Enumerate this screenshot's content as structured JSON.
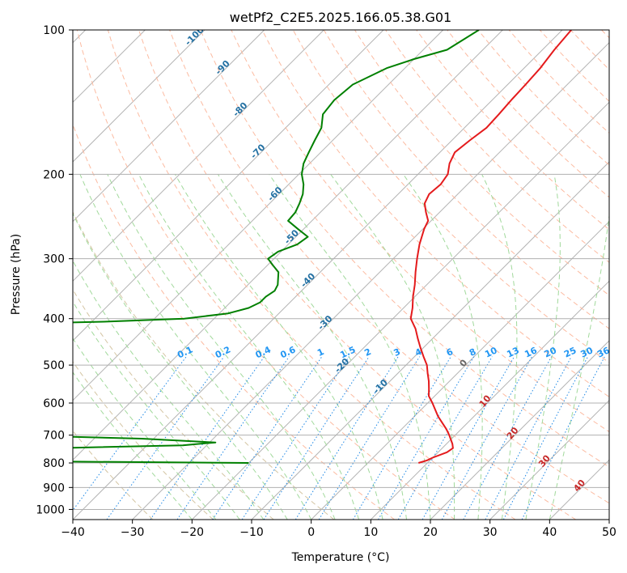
{
  "chart_data": {
    "type": "line",
    "subtype": "skew-t log-p diagram",
    "title": "wetPf2_C2E5.2025.166.05.38.G01",
    "xlabel": "Temperature (°C)",
    "ylabel": "Pressure (hPa)",
    "xlim": [
      -40,
      50
    ],
    "ylim": [
      1050,
      100
    ],
    "y_scale": "log",
    "x_ticks": [
      -40,
      -30,
      -20,
      -10,
      0,
      10,
      20,
      30,
      40,
      50
    ],
    "x_tick_labels": [
      "−40",
      "−30",
      "−20",
      "−10",
      "0",
      "10",
      "20",
      "30",
      "40",
      "50"
    ],
    "y_ticks": [
      100,
      200,
      300,
      400,
      500,
      600,
      700,
      800,
      900,
      1000
    ],
    "y_tick_labels": [
      "100",
      "200",
      "300",
      "400",
      "500",
      "600",
      "700",
      "800",
      "900",
      "1000"
    ],
    "grid": true,
    "colors": {
      "temperature": "#e41a1c",
      "dewpoint": "#008000",
      "isotherm": "#999999",
      "dry_adiabat": "#fc9272",
      "moist_adiabat": "#74c476",
      "mixing_ratio": "#1e88e5",
      "mixing_ratio_label": "#2196f3",
      "isotherm_label": "#2471a3",
      "moist_label": "#c62828"
    },
    "isotherm_labels": [
      "-100",
      "-90",
      "-80",
      "-70",
      "-60",
      "-50",
      "-40",
      "-30",
      "-20",
      "-10"
    ],
    "mixing_ratio_labels": [
      "0.1",
      "0.2",
      "0.4",
      "0.6",
      "1",
      "1.5",
      "2",
      "3",
      "4",
      "6",
      "8",
      "10",
      "13",
      "16",
      "20",
      "25",
      "30",
      "36"
    ],
    "moist_adiabat_labels": [
      "0",
      "10",
      "20",
      "30",
      "40"
    ],
    "series": [
      {
        "key": "temperature",
        "points": [
          [
            100,
            -38.5
          ],
          [
            110,
            -38
          ],
          [
            120,
            -37.3
          ],
          [
            130,
            -37
          ],
          [
            140,
            -36.8
          ],
          [
            150,
            -36.5
          ],
          [
            160,
            -36.3
          ],
          [
            170,
            -37
          ],
          [
            180,
            -37.5
          ],
          [
            190,
            -36.5
          ],
          [
            200,
            -35
          ],
          [
            210,
            -34.5
          ],
          [
            220,
            -34.8
          ],
          [
            230,
            -34
          ],
          [
            240,
            -32.3
          ],
          [
            250,
            -30.5
          ],
          [
            260,
            -29.8
          ],
          [
            280,
            -28
          ],
          [
            300,
            -26
          ],
          [
            320,
            -24
          ],
          [
            340,
            -22
          ],
          [
            360,
            -20.3
          ],
          [
            380,
            -18.5
          ],
          [
            400,
            -17
          ],
          [
            420,
            -14.5
          ],
          [
            440,
            -12.5
          ],
          [
            460,
            -10.5
          ],
          [
            480,
            -8.5
          ],
          [
            500,
            -6.5
          ],
          [
            520,
            -5
          ],
          [
            540,
            -3.5
          ],
          [
            560,
            -2.2
          ],
          [
            580,
            -1
          ],
          [
            600,
            0.8
          ],
          [
            640,
            4
          ],
          [
            680,
            7.5
          ],
          [
            700,
            9
          ],
          [
            730,
            11
          ],
          [
            745,
            11.8
          ],
          [
            760,
            11.5
          ],
          [
            780,
            10
          ],
          [
            790,
            9.5
          ],
          [
            800,
            8.5
          ]
        ]
      },
      {
        "key": "dewpoint",
        "points": [
          [
            100,
            -54
          ],
          [
            110,
            -56
          ],
          [
            115,
            -60
          ],
          [
            120,
            -63
          ],
          [
            130,
            -66
          ],
          [
            140,
            -66.5
          ],
          [
            150,
            -66
          ],
          [
            160,
            -64
          ],
          [
            170,
            -63
          ],
          [
            180,
            -62
          ],
          [
            190,
            -61
          ],
          [
            200,
            -59.5
          ],
          [
            210,
            -57.5
          ],
          [
            220,
            -56
          ],
          [
            230,
            -55
          ],
          [
            240,
            -54.2
          ],
          [
            250,
            -54
          ],
          [
            260,
            -51
          ],
          [
            270,
            -48
          ],
          [
            280,
            -48.5
          ],
          [
            290,
            -50.5
          ],
          [
            300,
            -51
          ],
          [
            310,
            -49
          ],
          [
            320,
            -47
          ],
          [
            340,
            -45
          ],
          [
            350,
            -44.5
          ],
          [
            360,
            -45
          ],
          [
            370,
            -45
          ],
          [
            380,
            -46
          ],
          [
            390,
            -48.5
          ],
          [
            400,
            -55
          ],
          [
            406,
            -68
          ],
          [
            410,
            -82
          ],
          [
            413,
            -95
          ]
        ]
      },
      {
        "key": "dewpoint",
        "points": [
          [
            692,
            -95
          ],
          [
            700,
            -65
          ],
          [
            712,
            -42
          ],
          [
            725,
            -29
          ],
          [
            735,
            -34
          ],
          [
            745,
            -55
          ],
          [
            760,
            -95
          ]
        ]
      },
      {
        "key": "dewpoint",
        "points": [
          [
            790,
            -95
          ],
          [
            795,
            -50
          ],
          [
            800,
            -20
          ]
        ]
      }
    ]
  }
}
